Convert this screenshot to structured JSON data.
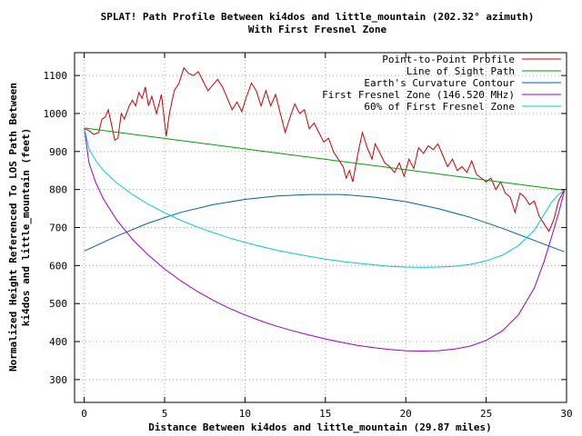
{
  "chart_data": {
    "type": "line",
    "title": "SPLAT! Path Profile Between ki4dos and little_mountain (202.32° azimuth)",
    "subtitle": "With First Fresnel Zone",
    "xlabel": "Distance Between ki4dos and little_mountain (29.87 miles)",
    "ylabel_line1": "Normalized Height Referenced To LOS Path Between",
    "ylabel_line2": "ki4dos and little_mountain (feet)",
    "xlim": [
      -0.6,
      30
    ],
    "ylim": [
      240,
      1160
    ],
    "x_ticks": [
      0,
      5,
      10,
      15,
      20,
      25,
      30
    ],
    "y_ticks": [
      300,
      400,
      500,
      600,
      700,
      800,
      900,
      1000,
      1100
    ],
    "grid": true,
    "legend_position": "top-right",
    "series": [
      {
        "name": "Point-to-Point Profile",
        "color": "#cc0000",
        "points": [
          [
            0,
            960
          ],
          [
            0.3,
            955
          ],
          [
            0.6,
            945
          ],
          [
            0.9,
            950
          ],
          [
            1.1,
            985
          ],
          [
            1.3,
            990
          ],
          [
            1.5,
            1010
          ],
          [
            1.7,
            970
          ],
          [
            1.9,
            930
          ],
          [
            2.1,
            935
          ],
          [
            2.3,
            1000
          ],
          [
            2.5,
            985
          ],
          [
            2.8,
            1020
          ],
          [
            3.0,
            1035
          ],
          [
            3.2,
            1020
          ],
          [
            3.4,
            1055
          ],
          [
            3.6,
            1040
          ],
          [
            3.8,
            1070
          ],
          [
            4.0,
            1020
          ],
          [
            4.2,
            1045
          ],
          [
            4.5,
            1000
          ],
          [
            4.8,
            1050
          ],
          [
            5.1,
            940
          ],
          [
            5.3,
            1000
          ],
          [
            5.6,
            1060
          ],
          [
            5.9,
            1080
          ],
          [
            6.2,
            1120
          ],
          [
            6.5,
            1105
          ],
          [
            6.8,
            1100
          ],
          [
            7.1,
            1110
          ],
          [
            7.4,
            1085
          ],
          [
            7.7,
            1060
          ],
          [
            8.0,
            1075
          ],
          [
            8.3,
            1090
          ],
          [
            8.6,
            1070
          ],
          [
            8.9,
            1040
          ],
          [
            9.2,
            1010
          ],
          [
            9.5,
            1030
          ],
          [
            9.8,
            1005
          ],
          [
            10.1,
            1045
          ],
          [
            10.4,
            1080
          ],
          [
            10.7,
            1060
          ],
          [
            11.0,
            1020
          ],
          [
            11.3,
            1060
          ],
          [
            11.6,
            1020
          ],
          [
            11.9,
            1050
          ],
          [
            12.2,
            1000
          ],
          [
            12.5,
            950
          ],
          [
            12.8,
            990
          ],
          [
            13.1,
            1025
          ],
          [
            13.4,
            1000
          ],
          [
            13.7,
            1010
          ],
          [
            14.0,
            960
          ],
          [
            14.3,
            975
          ],
          [
            14.6,
            950
          ],
          [
            14.9,
            925
          ],
          [
            15.2,
            935
          ],
          [
            15.5,
            900
          ],
          [
            15.8,
            880
          ],
          [
            16.1,
            860
          ],
          [
            16.3,
            830
          ],
          [
            16.5,
            850
          ],
          [
            16.7,
            820
          ],
          [
            17.0,
            890
          ],
          [
            17.3,
            950
          ],
          [
            17.6,
            910
          ],
          [
            17.9,
            880
          ],
          [
            18.1,
            920
          ],
          [
            18.4,
            895
          ],
          [
            18.7,
            870
          ],
          [
            19.0,
            860
          ],
          [
            19.3,
            845
          ],
          [
            19.6,
            870
          ],
          [
            19.9,
            835
          ],
          [
            20.2,
            880
          ],
          [
            20.5,
            855
          ],
          [
            20.8,
            910
          ],
          [
            21.1,
            895
          ],
          [
            21.4,
            915
          ],
          [
            21.7,
            905
          ],
          [
            22.0,
            920
          ],
          [
            22.3,
            890
          ],
          [
            22.6,
            860
          ],
          [
            22.9,
            880
          ],
          [
            23.2,
            850
          ],
          [
            23.5,
            860
          ],
          [
            23.8,
            845
          ],
          [
            24.1,
            875
          ],
          [
            24.4,
            840
          ],
          [
            24.7,
            830
          ],
          [
            25.0,
            820
          ],
          [
            25.3,
            830
          ],
          [
            25.6,
            800
          ],
          [
            25.9,
            820
          ],
          [
            26.2,
            790
          ],
          [
            26.5,
            780
          ],
          [
            26.8,
            740
          ],
          [
            27.1,
            790
          ],
          [
            27.4,
            780
          ],
          [
            27.7,
            760
          ],
          [
            28.0,
            770
          ],
          [
            28.3,
            730
          ],
          [
            28.6,
            710
          ],
          [
            28.9,
            690
          ],
          [
            29.2,
            720
          ],
          [
            29.5,
            770
          ],
          [
            29.87,
            800
          ]
        ]
      },
      {
        "name": "Line of Sight Path",
        "color": "#00a000",
        "points": [
          [
            0,
            962
          ],
          [
            29.87,
            798
          ]
        ]
      },
      {
        "name": "Earth's Curvature Contour",
        "color": "#0060ad",
        "points": [
          [
            0,
            638
          ],
          [
            2,
            677
          ],
          [
            4,
            712
          ],
          [
            6,
            740
          ],
          [
            8,
            760
          ],
          [
            10,
            774
          ],
          [
            12,
            783
          ],
          [
            14,
            787
          ],
          [
            16,
            787
          ],
          [
            18,
            780
          ],
          [
            20,
            768
          ],
          [
            22,
            750
          ],
          [
            24,
            727
          ],
          [
            26,
            698
          ],
          [
            28,
            666
          ],
          [
            29.87,
            636
          ]
        ]
      },
      {
        "name": "First Fresnel Zone (146.520 MHz)",
        "color": "#9400d3",
        "points": [
          [
            0,
            962
          ],
          [
            0.3,
            870
          ],
          [
            0.7,
            820
          ],
          [
            1.2,
            775
          ],
          [
            2,
            721
          ],
          [
            3,
            669
          ],
          [
            4,
            627
          ],
          [
            5,
            591
          ],
          [
            6,
            560
          ],
          [
            7,
            533
          ],
          [
            8,
            509
          ],
          [
            9,
            488
          ],
          [
            10,
            470
          ],
          [
            11,
            454
          ],
          [
            12,
            440
          ],
          [
            13,
            428
          ],
          [
            14,
            417
          ],
          [
            15,
            407
          ],
          [
            16,
            398
          ],
          [
            17,
            390
          ],
          [
            18,
            384
          ],
          [
            19,
            379
          ],
          [
            20,
            376
          ],
          [
            21,
            375
          ],
          [
            22,
            376
          ],
          [
            23,
            380
          ],
          [
            24,
            388
          ],
          [
            25,
            403
          ],
          [
            26,
            428
          ],
          [
            27,
            470
          ],
          [
            28,
            541
          ],
          [
            28.6,
            610
          ],
          [
            29.1,
            680
          ],
          [
            29.5,
            737
          ],
          [
            29.87,
            798
          ]
        ]
      },
      {
        "name": "60% of First Fresnel Zone",
        "color": "#00cccc",
        "points": [
          [
            0,
            962
          ],
          [
            0.3,
            907
          ],
          [
            0.7,
            877
          ],
          [
            1.2,
            850
          ],
          [
            2,
            818
          ],
          [
            3,
            787
          ],
          [
            4,
            761
          ],
          [
            5,
            739
          ],
          [
            6,
            719
          ],
          [
            7,
            702
          ],
          [
            8,
            687
          ],
          [
            9,
            673
          ],
          [
            10,
            661
          ],
          [
            11,
            650
          ],
          [
            12,
            640
          ],
          [
            13,
            632
          ],
          [
            14,
            624
          ],
          [
            15,
            617
          ],
          [
            16,
            611
          ],
          [
            17,
            606
          ],
          [
            18,
            602
          ],
          [
            19,
            598
          ],
          [
            20,
            596
          ],
          [
            21,
            595
          ],
          [
            22,
            596
          ],
          [
            23,
            598
          ],
          [
            24,
            603
          ],
          [
            25,
            612
          ],
          [
            26,
            627
          ],
          [
            27,
            652
          ],
          [
            28,
            693
          ],
          [
            28.6,
            734
          ],
          [
            29.1,
            768
          ],
          [
            29.5,
            787
          ],
          [
            29.87,
            798
          ]
        ]
      }
    ]
  }
}
